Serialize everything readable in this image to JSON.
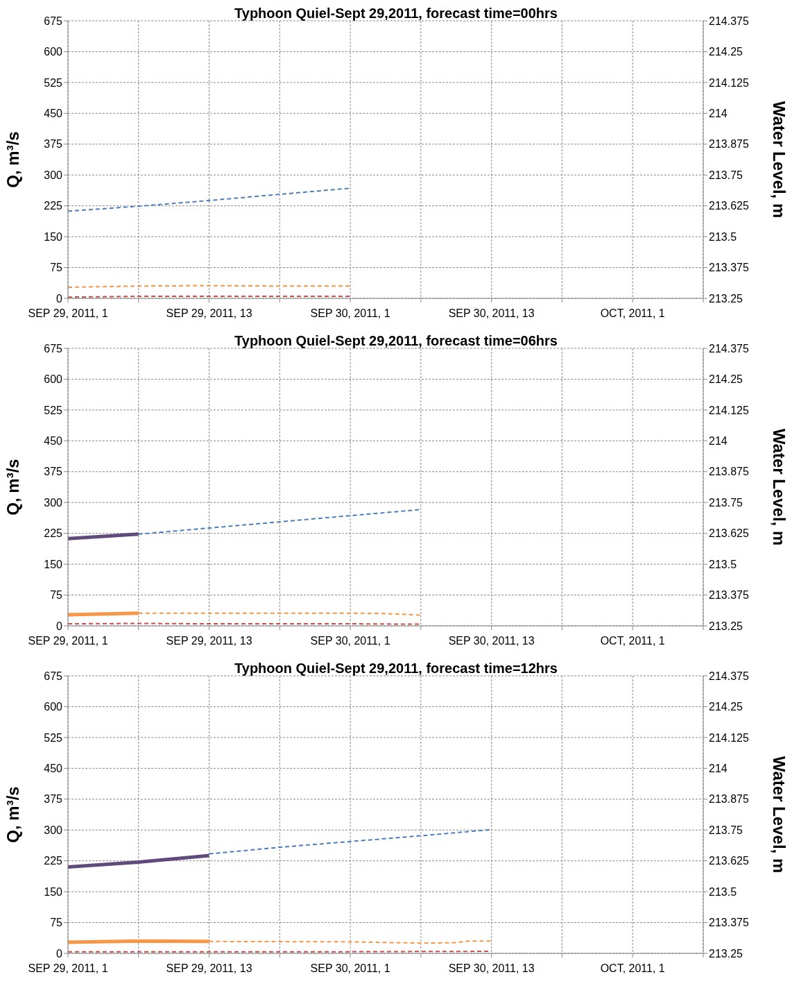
{
  "chart_data": [
    {
      "type": "line",
      "title": "Typhoon Quiel-Sept 29,2011, forecast time=00hrs",
      "ylabel": "Q, m³/s",
      "y2label": "Water Level, m",
      "xlim": [
        "2011-09-29T01:00",
        "2011-10-01T07:00"
      ],
      "xticks": [
        {
          "value": "2011-09-29T01:00",
          "label": "SEP 29, 2011, 1"
        },
        {
          "value": "2011-09-29T07:00",
          "label": null
        },
        {
          "value": "2011-09-29T13:00",
          "label": "SEP 29, 2011, 13"
        },
        {
          "value": "2011-09-29T19:00",
          "label": null
        },
        {
          "value": "2011-09-30T01:00",
          "label": "SEP 30, 2011, 1"
        },
        {
          "value": "2011-09-30T07:00",
          "label": null
        },
        {
          "value": "2011-09-30T13:00",
          "label": "SEP 30, 2011, 13"
        },
        {
          "value": "2011-09-30T19:00",
          "label": null
        },
        {
          "value": "2011-10-01T01:00",
          "label": "OCT, 2011, 1"
        },
        {
          "value": "2011-10-01T07:00",
          "label": null
        }
      ],
      "ylim": [
        0,
        675
      ],
      "yticks": [
        0,
        75,
        150,
        225,
        300,
        375,
        450,
        525,
        600,
        675
      ],
      "y2lim": [
        213.25,
        214.375
      ],
      "y2ticks": [
        213.25,
        213.375,
        213.5,
        213.625,
        213.75,
        213.875,
        214,
        214.125,
        214.25,
        214.375
      ],
      "grid": true,
      "marker": "none",
      "series": [
        {
          "color": "#4a7ebb",
          "line_style": "dashed",
          "x": [
            "2011-09-29T01:00",
            "2011-09-29T07:00",
            "2011-09-29T13:00",
            "2011-09-29T19:00",
            "2011-09-30T01:00"
          ],
          "values": [
            212,
            224,
            238,
            253,
            268
          ]
        },
        {
          "color": "#f79646",
          "line_style": "dashed",
          "x": [
            "2011-09-29T01:00",
            "2011-09-29T07:00",
            "2011-09-29T13:00",
            "2011-09-29T19:00",
            "2011-09-30T01:00"
          ],
          "values": [
            27,
            30,
            31,
            30,
            30
          ]
        },
        {
          "color": "#c0504d",
          "line_style": "dashed",
          "x": [
            "2011-09-29T01:00",
            "2011-09-29T07:00",
            "2011-09-29T13:00",
            "2011-09-29T19:00",
            "2011-09-30T01:00"
          ],
          "values": [
            3,
            5,
            5,
            5,
            5
          ]
        }
      ]
    },
    {
      "type": "line",
      "title": "Typhoon Quiel-Sept 29,2011, forecast time=06hrs",
      "ylabel": "Q, m³/s",
      "y2label": "Water Level, m",
      "xlim": [
        "2011-09-29T01:00",
        "2011-10-01T07:00"
      ],
      "xticks": [
        {
          "value": "2011-09-29T01:00",
          "label": "SEP 29, 2011, 1"
        },
        {
          "value": "2011-09-29T07:00",
          "label": null
        },
        {
          "value": "2011-09-29T13:00",
          "label": "SEP 29, 2011, 13"
        },
        {
          "value": "2011-09-29T19:00",
          "label": null
        },
        {
          "value": "2011-09-30T01:00",
          "label": "SEP 30, 2011, 1"
        },
        {
          "value": "2011-09-30T07:00",
          "label": null
        },
        {
          "value": "2011-09-30T13:00",
          "label": "SEP 30, 2011, 13"
        },
        {
          "value": "2011-09-30T19:00",
          "label": null
        },
        {
          "value": "2011-10-01T01:00",
          "label": "OCT, 2011, 1"
        },
        {
          "value": "2011-10-01T07:00",
          "label": null
        }
      ],
      "ylim": [
        0,
        675
      ],
      "yticks": [
        0,
        75,
        150,
        225,
        300,
        375,
        450,
        525,
        600,
        675
      ],
      "y2lim": [
        213.25,
        214.375
      ],
      "y2ticks": [
        213.25,
        213.375,
        213.5,
        213.625,
        213.75,
        213.875,
        214,
        214.125,
        214.25,
        214.375
      ],
      "grid": true,
      "marker": "none",
      "series": [
        {
          "color": "#604a7b",
          "line_style": "solid",
          "x": [
            "2011-09-29T01:00",
            "2011-09-29T07:00"
          ],
          "values": [
            212,
            223
          ]
        },
        {
          "color": "#4a7ebb",
          "line_style": "dashed",
          "x": [
            "2011-09-29T07:00",
            "2011-09-29T13:00",
            "2011-09-29T19:00",
            "2011-09-30T01:00",
            "2011-09-30T07:00"
          ],
          "values": [
            223,
            238,
            253,
            268,
            283
          ]
        },
        {
          "color": "#f79646",
          "line_style": "solid",
          "x": [
            "2011-09-29T01:00",
            "2011-09-29T07:00"
          ],
          "values": [
            27,
            31
          ]
        },
        {
          "color": "#f79646",
          "line_style": "dashed",
          "x": [
            "2011-09-29T07:00",
            "2011-09-29T13:00",
            "2011-09-29T19:00",
            "2011-09-30T01:00",
            "2011-09-30T04:00",
            "2011-09-30T07:00"
          ],
          "values": [
            31,
            31,
            31,
            31,
            30,
            26
          ]
        },
        {
          "color": "#c0504d",
          "line_style": "dashed",
          "x": [
            "2011-09-29T01:00",
            "2011-09-29T07:00",
            "2011-09-29T13:00",
            "2011-09-29T19:00",
            "2011-09-30T01:00",
            "2011-09-30T07:00"
          ],
          "values": [
            5,
            6,
            5,
            5,
            5,
            4
          ]
        }
      ]
    },
    {
      "type": "line",
      "title": "Typhoon Quiel-Sept 29,2011, forecast time=12hrs",
      "ylabel": "Q, m³/s",
      "y2label": "Water Level, m",
      "xlim": [
        "2011-09-29T01:00",
        "2011-10-01T07:00"
      ],
      "xticks": [
        {
          "value": "2011-09-29T01:00",
          "label": "SEP 29, 2011, 1"
        },
        {
          "value": "2011-09-29T07:00",
          "label": null
        },
        {
          "value": "2011-09-29T13:00",
          "label": "SEP 29, 2011, 13"
        },
        {
          "value": "2011-09-29T19:00",
          "label": null
        },
        {
          "value": "2011-09-30T01:00",
          "label": "SEP 30, 2011, 1"
        },
        {
          "value": "2011-09-30T07:00",
          "label": null
        },
        {
          "value": "2011-09-30T13:00",
          "label": "SEP 30, 2011, 13"
        },
        {
          "value": "2011-09-30T19:00",
          "label": null
        },
        {
          "value": "2011-10-01T01:00",
          "label": "OCT, 2011, 1"
        },
        {
          "value": "2011-10-01T07:00",
          "label": null
        }
      ],
      "ylim": [
        0,
        675
      ],
      "yticks": [
        0,
        75,
        150,
        225,
        300,
        375,
        450,
        525,
        600,
        675
      ],
      "y2lim": [
        213.25,
        214.375
      ],
      "y2ticks": [
        213.25,
        213.375,
        213.5,
        213.625,
        213.75,
        213.875,
        214,
        214.125,
        214.25,
        214.375
      ],
      "grid": true,
      "marker": "none",
      "series": [
        {
          "color": "#604a7b",
          "line_style": "solid",
          "x": [
            "2011-09-29T01:00",
            "2011-09-29T07:00",
            "2011-09-29T13:00"
          ],
          "values": [
            210,
            222,
            238
          ]
        },
        {
          "color": "#4a7ebb",
          "line_style": "dashed",
          "x": [
            "2011-09-29T13:00",
            "2011-09-29T19:00",
            "2011-09-30T01:00",
            "2011-09-30T07:00",
            "2011-09-30T13:00"
          ],
          "values": [
            242,
            258,
            272,
            286,
            301
          ]
        },
        {
          "color": "#f79646",
          "line_style": "solid",
          "x": [
            "2011-09-29T01:00",
            "2011-09-29T07:00",
            "2011-09-29T13:00"
          ],
          "values": [
            27,
            30,
            29
          ]
        },
        {
          "color": "#f79646",
          "line_style": "dashed",
          "x": [
            "2011-09-29T13:00",
            "2011-09-30T01:00",
            "2011-09-30T07:00",
            "2011-09-30T10:00",
            "2011-09-30T11:00",
            "2011-09-30T13:00"
          ],
          "values": [
            29,
            28,
            25,
            26,
            30,
            30
          ]
        },
        {
          "color": "#c0504d",
          "line_style": "dashed",
          "x": [
            "2011-09-29T01:00",
            "2011-09-29T13:00",
            "2011-09-30T01:00",
            "2011-09-30T13:00"
          ],
          "values": [
            4,
            4,
            4,
            5
          ]
        }
      ]
    }
  ]
}
